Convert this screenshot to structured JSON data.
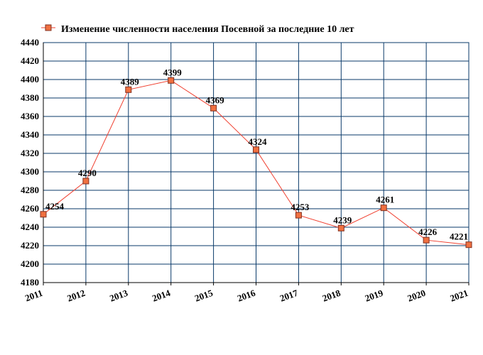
{
  "chart_data": {
    "type": "line",
    "title": "",
    "xlabel": "",
    "ylabel": "",
    "legend": {
      "label": "Изменение численности населения Посевной за последние 10 лет",
      "placement": "top-left"
    },
    "x": [
      "2011",
      "2012",
      "2013",
      "2014",
      "2015",
      "2016",
      "2017",
      "2018",
      "2019",
      "2020",
      "2021"
    ],
    "y_ticks": [
      "4440",
      "4420",
      "4400",
      "4380",
      "4360",
      "4340",
      "4320",
      "4300",
      "4280",
      "4260",
      "4240",
      "4220",
      "4200",
      "4180"
    ],
    "ylim": [
      4180,
      4440
    ],
    "grid": true,
    "series": [
      {
        "name": "Изменение численности населения Посевной за последние 10 лет",
        "values": [
          4254,
          4290,
          4389,
          4399,
          4369,
          4324,
          4253,
          4239,
          4261,
          4226,
          4221
        ],
        "labels": [
          "4254",
          "4290",
          "4389",
          "4399",
          "4369",
          "4324",
          "4253",
          "4239",
          "4261",
          "4226",
          "4221"
        ]
      }
    ],
    "colors": {
      "line": "#f04030",
      "marker_fill": "#f07040",
      "marker_stroke": "#803020",
      "grid": "#0a3a6a"
    }
  }
}
